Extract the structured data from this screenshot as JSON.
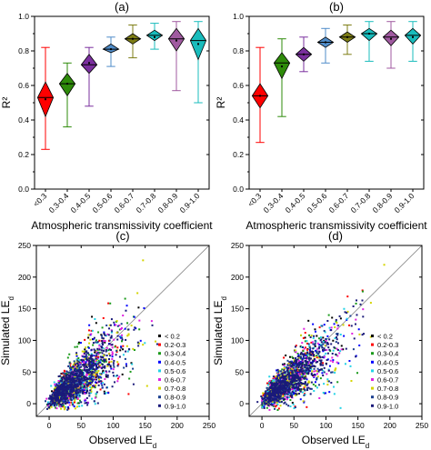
{
  "chart_data": [
    {
      "panel": "(a)",
      "type": "box-diamond",
      "categories": [
        "<0.3",
        "0.3-0.4",
        "0.4-0.5",
        "0.5-0.6",
        "0.6-0.7",
        "0.7-0.8",
        "0.8-0.9",
        "0.9-1.0"
      ],
      "xlabel": "Atmospheric transmissivity coefficient",
      "ylabel": "R²",
      "ylim": [
        0,
        1.0
      ],
      "yticks": [
        "0.0",
        "0.2",
        "0.4",
        "0.6",
        "0.8",
        "1.0"
      ],
      "boxes": [
        {
          "min": 0.23,
          "q1": 0.42,
          "median": 0.53,
          "q3": 0.62,
          "max": 0.82,
          "mean": 0.52,
          "color": "#ff0000"
        },
        {
          "min": 0.36,
          "q1": 0.54,
          "median": 0.61,
          "q3": 0.67,
          "max": 0.73,
          "mean": 0.61,
          "color": "#2e8b0a"
        },
        {
          "min": 0.48,
          "q1": 0.67,
          "median": 0.72,
          "q3": 0.78,
          "max": 0.82,
          "mean": 0.73,
          "color": "#7a2f9e"
        },
        {
          "min": 0.71,
          "q1": 0.79,
          "median": 0.81,
          "q3": 0.84,
          "max": 0.88,
          "mean": 0.81,
          "color": "#4f8cc9"
        },
        {
          "min": 0.76,
          "q1": 0.84,
          "median": 0.87,
          "q3": 0.9,
          "max": 0.95,
          "mean": 0.87,
          "color": "#7d7d14"
        },
        {
          "min": 0.81,
          "q1": 0.86,
          "median": 0.89,
          "q3": 0.92,
          "max": 0.96,
          "mean": 0.88,
          "color": "#19bcbc"
        },
        {
          "min": 0.57,
          "q1": 0.8,
          "median": 0.87,
          "q3": 0.93,
          "max": 0.97,
          "mean": 0.86,
          "color": "#a05aa0"
        },
        {
          "min": 0.5,
          "q1": 0.75,
          "median": 0.86,
          "q3": 0.93,
          "max": 0.97,
          "mean": 0.84,
          "color": "#19bcbc"
        }
      ]
    },
    {
      "panel": "(b)",
      "type": "box-diamond",
      "categories": [
        "<0.3",
        "0.3-0.4",
        "0.4-0.5",
        "0.5-0.6",
        "0.6-0.7",
        "0.7-0.8",
        "0.8-0.9",
        "0.9-1.0"
      ],
      "xlabel": "Atmospheric transmissivity coefficient",
      "ylabel": "R²",
      "ylim": [
        0,
        1.0
      ],
      "yticks": [
        "0.0",
        "0.2",
        "0.4",
        "0.6",
        "0.8",
        "1.0"
      ],
      "boxes": [
        {
          "min": 0.27,
          "q1": 0.47,
          "median": 0.54,
          "q3": 0.61,
          "max": 0.82,
          "mean": 0.54,
          "color": "#ff0000"
        },
        {
          "min": 0.42,
          "q1": 0.64,
          "median": 0.73,
          "q3": 0.79,
          "max": 0.87,
          "mean": 0.71,
          "color": "#2e8b0a"
        },
        {
          "min": 0.68,
          "q1": 0.74,
          "median": 0.78,
          "q3": 0.82,
          "max": 0.88,
          "mean": 0.78,
          "color": "#7a2f9e"
        },
        {
          "min": 0.73,
          "q1": 0.82,
          "median": 0.85,
          "q3": 0.88,
          "max": 0.93,
          "mean": 0.85,
          "color": "#4f8cc9"
        },
        {
          "min": 0.78,
          "q1": 0.85,
          "median": 0.88,
          "q3": 0.91,
          "max": 0.95,
          "mean": 0.88,
          "color": "#7d7d14"
        },
        {
          "min": 0.74,
          "q1": 0.86,
          "median": 0.9,
          "q3": 0.93,
          "max": 0.97,
          "mean": 0.9,
          "color": "#19bcbc"
        },
        {
          "min": 0.7,
          "q1": 0.83,
          "median": 0.88,
          "q3": 0.92,
          "max": 0.97,
          "mean": 0.87,
          "color": "#a05aa0"
        },
        {
          "min": 0.74,
          "q1": 0.84,
          "median": 0.89,
          "q3": 0.93,
          "max": 0.97,
          "mean": 0.88,
          "color": "#19bcbc"
        }
      ]
    },
    {
      "panel": "(c)",
      "type": "scatter",
      "xlabel": "Observed LE",
      "xlabel_sub": "d",
      "ylabel": "Simulated LE",
      "ylabel_sub": "d",
      "xlim": [
        -20,
        250
      ],
      "ylim": [
        -20,
        250
      ],
      "ticks": [
        "0",
        "50",
        "100",
        "150",
        "200",
        "250"
      ],
      "one_to_one_line": true,
      "legend_position": "lower-right",
      "series": [
        {
          "name": "< 0.2",
          "color": "#000000",
          "slope": 0.85,
          "spread": 0.35,
          "n": 120
        },
        {
          "name": "0.2-0.3",
          "color": "#ff0000",
          "slope": 0.82,
          "spread": 0.33,
          "n": 140
        },
        {
          "name": "0.3-0.4",
          "color": "#1a9a1a",
          "slope": 0.8,
          "spread": 0.3,
          "n": 160
        },
        {
          "name": "0.4-0.5",
          "color": "#0000ff",
          "slope": 0.8,
          "spread": 0.28,
          "n": 180
        },
        {
          "name": "0.5-0.6",
          "color": "#22d3e6",
          "slope": 0.78,
          "spread": 0.27,
          "n": 190
        },
        {
          "name": "0.6-0.7",
          "color": "#e021e0",
          "slope": 0.78,
          "spread": 0.27,
          "n": 190
        },
        {
          "name": "0.7-0.8",
          "color": "#d4d400",
          "slope": 0.77,
          "spread": 0.26,
          "n": 190
        },
        {
          "name": "0.8-0.9",
          "color": "#1a3f8f",
          "slope": 0.76,
          "spread": 0.24,
          "n": 220
        },
        {
          "name": "0.9-1.0",
          "color": "#1a1a7a",
          "slope": 0.76,
          "spread": 0.22,
          "n": 600
        }
      ]
    },
    {
      "panel": "(d)",
      "type": "scatter",
      "xlabel": "Observed LE",
      "xlabel_sub": "d",
      "ylabel": "Simulated LE",
      "ylabel_sub": "d",
      "xlim": [
        -20,
        250
      ],
      "ylim": [
        -20,
        250
      ],
      "ticks": [
        "0",
        "50",
        "100",
        "150",
        "200",
        "250"
      ],
      "one_to_one_line": true,
      "legend_position": "lower-right",
      "series": [
        {
          "name": "< 0.2",
          "color": "#000000",
          "slope": 0.83,
          "spread": 0.3,
          "n": 110
        },
        {
          "name": "0.2-0.3",
          "color": "#ff0000",
          "slope": 0.8,
          "spread": 0.28,
          "n": 130
        },
        {
          "name": "0.3-0.4",
          "color": "#1a9a1a",
          "slope": 0.78,
          "spread": 0.26,
          "n": 150
        },
        {
          "name": "0.4-0.5",
          "color": "#0000ff",
          "slope": 0.78,
          "spread": 0.24,
          "n": 170
        },
        {
          "name": "0.5-0.6",
          "color": "#22d3e6",
          "slope": 0.77,
          "spread": 0.23,
          "n": 180
        },
        {
          "name": "0.6-0.7",
          "color": "#e021e0",
          "slope": 0.77,
          "spread": 0.23,
          "n": 180
        },
        {
          "name": "0.7-0.8",
          "color": "#d4d400",
          "slope": 0.76,
          "spread": 0.22,
          "n": 180
        },
        {
          "name": "0.8-0.9",
          "color": "#1a3f8f",
          "slope": 0.76,
          "spread": 0.2,
          "n": 200
        },
        {
          "name": "0.9-1.0",
          "color": "#1a1a7a",
          "slope": 0.75,
          "spread": 0.18,
          "n": 560
        }
      ]
    }
  ]
}
